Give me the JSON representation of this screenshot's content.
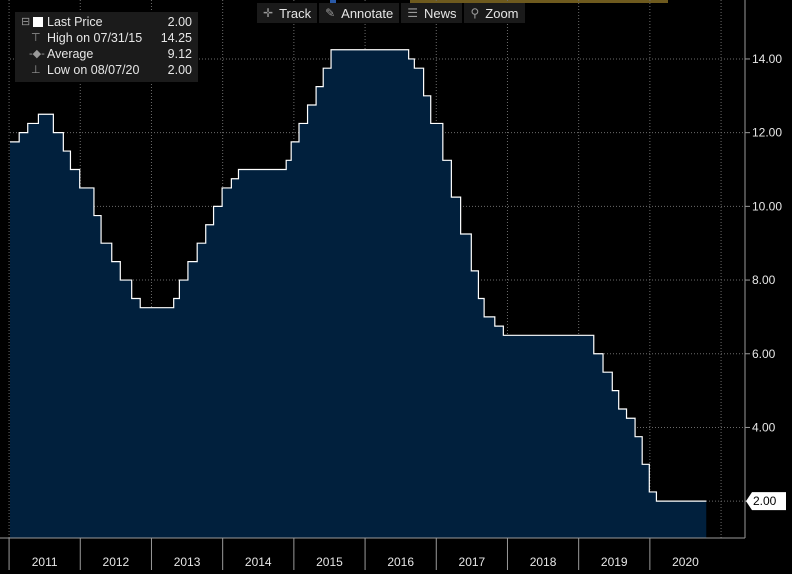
{
  "legend": {
    "last_label": "Last Price",
    "last_value": "2.00",
    "high_label": "High on 07/31/15",
    "high_value": "14.25",
    "avg_label": "Average",
    "avg_value": "9.12",
    "low_label": "Low on 08/07/20",
    "low_value": "2.00"
  },
  "toolbar": {
    "track": "Track",
    "annotate": "Annotate",
    "news": "News",
    "zoom": "Zoom"
  },
  "colors": {
    "area_fill": "#01203d",
    "line": "#ffffff",
    "background": "#000000",
    "grid": "#6b6b6b"
  },
  "chart_data": {
    "type": "area",
    "ylim": [
      1.0,
      15.6
    ],
    "yticks": [
      2,
      4,
      6,
      8,
      10,
      12,
      14
    ],
    "ytick_labels": [
      "2.00",
      "4.00",
      "6.00",
      "8.00",
      "10.00",
      "12.00",
      "14.00"
    ],
    "x_categories": [
      "2011",
      "2012",
      "2013",
      "2014",
      "2015",
      "2016",
      "2017",
      "2018",
      "2019",
      "2020"
    ],
    "last_value_label": "2.00",
    "grid": true,
    "series": [
      {
        "name": "Last Price",
        "points": [
          [
            2011.0,
            11.75
          ],
          [
            2011.1,
            12.0
          ],
          [
            2011.22,
            12.25
          ],
          [
            2011.37,
            12.5
          ],
          [
            2011.58,
            12.0
          ],
          [
            2011.72,
            11.5
          ],
          [
            2011.82,
            11.0
          ],
          [
            2011.95,
            10.5
          ],
          [
            2012.15,
            9.75
          ],
          [
            2012.25,
            9.0
          ],
          [
            2012.4,
            8.5
          ],
          [
            2012.52,
            8.0
          ],
          [
            2012.68,
            7.5
          ],
          [
            2012.8,
            7.25
          ],
          [
            2013.27,
            7.5
          ],
          [
            2013.35,
            8.0
          ],
          [
            2013.47,
            8.5
          ],
          [
            2013.6,
            9.0
          ],
          [
            2013.72,
            9.5
          ],
          [
            2013.83,
            10.0
          ],
          [
            2013.95,
            10.5
          ],
          [
            2014.08,
            10.75
          ],
          [
            2014.18,
            11.0
          ],
          [
            2014.85,
            11.25
          ],
          [
            2014.92,
            11.75
          ],
          [
            2015.03,
            12.25
          ],
          [
            2015.15,
            12.75
          ],
          [
            2015.27,
            13.25
          ],
          [
            2015.37,
            13.75
          ],
          [
            2015.48,
            14.25
          ],
          [
            2016.57,
            14.0
          ],
          [
            2016.65,
            13.75
          ],
          [
            2016.78,
            13.0
          ],
          [
            2016.88,
            12.25
          ],
          [
            2017.05,
            11.25
          ],
          [
            2017.17,
            10.25
          ],
          [
            2017.3,
            9.25
          ],
          [
            2017.45,
            8.25
          ],
          [
            2017.55,
            7.5
          ],
          [
            2017.63,
            7.0
          ],
          [
            2017.78,
            6.75
          ],
          [
            2017.9,
            6.5
          ],
          [
            2019.08,
            6.5
          ],
          [
            2019.17,
            6.0
          ],
          [
            2019.3,
            5.5
          ],
          [
            2019.43,
            5.0
          ],
          [
            2019.52,
            4.5
          ],
          [
            2019.63,
            4.25
          ],
          [
            2019.75,
            3.75
          ],
          [
            2019.85,
            3.0
          ],
          [
            2019.95,
            2.25
          ],
          [
            2020.05,
            2.0
          ],
          [
            2020.75,
            2.0
          ]
        ]
      }
    ]
  }
}
